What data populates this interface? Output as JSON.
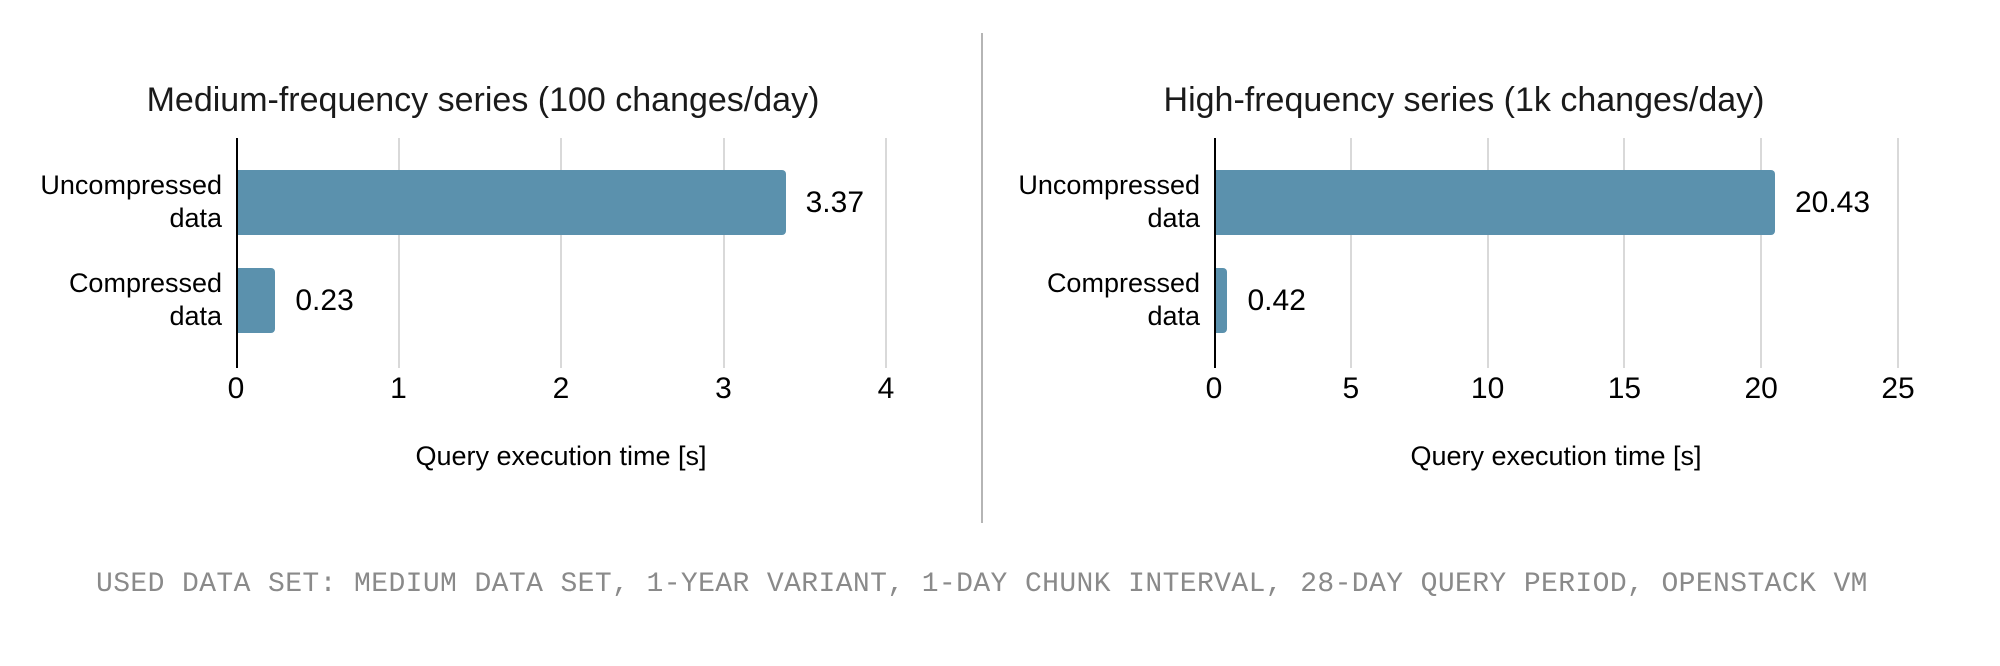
{
  "page": {
    "background": "#ffffff",
    "caption": "USED DATA SET: MEDIUM DATA SET, 1-YEAR VARIANT, 1-DAY CHUNK INTERVAL, 28-DAY QUERY PERIOD, OPENSTACK VM",
    "caption_color": "#8a8a8a"
  },
  "chart_data": [
    {
      "type": "bar",
      "orientation": "horizontal",
      "title": "Medium-frequency series (100 changes/day)",
      "categories": [
        "Uncompressed data",
        "Compressed data"
      ],
      "values": [
        3.37,
        0.23
      ],
      "value_labels": [
        "3.37",
        "0.23"
      ],
      "xlabel": "Query execution time [s]",
      "xlim": [
        0,
        4
      ],
      "xticks": [
        "0",
        "1",
        "2",
        "3",
        "4"
      ],
      "grid": true,
      "legend": "none",
      "bar_color": "#5b91ad",
      "gridline_color": "#d9d9d9",
      "axis_color": "#000000"
    },
    {
      "type": "bar",
      "orientation": "horizontal",
      "title": "High-frequency series (1k changes/day)",
      "categories": [
        "Uncompressed data",
        "Compressed data"
      ],
      "values": [
        20.43,
        0.42
      ],
      "value_labels": [
        "20.43",
        "0.42"
      ],
      "xlabel": "Query execution time [s]",
      "xlim": [
        0,
        25
      ],
      "xticks": [
        "0",
        "5",
        "10",
        "15",
        "20",
        "25"
      ],
      "grid": true,
      "legend": "none",
      "bar_color": "#5b91ad",
      "gridline_color": "#d9d9d9",
      "axis_color": "#000000"
    }
  ]
}
